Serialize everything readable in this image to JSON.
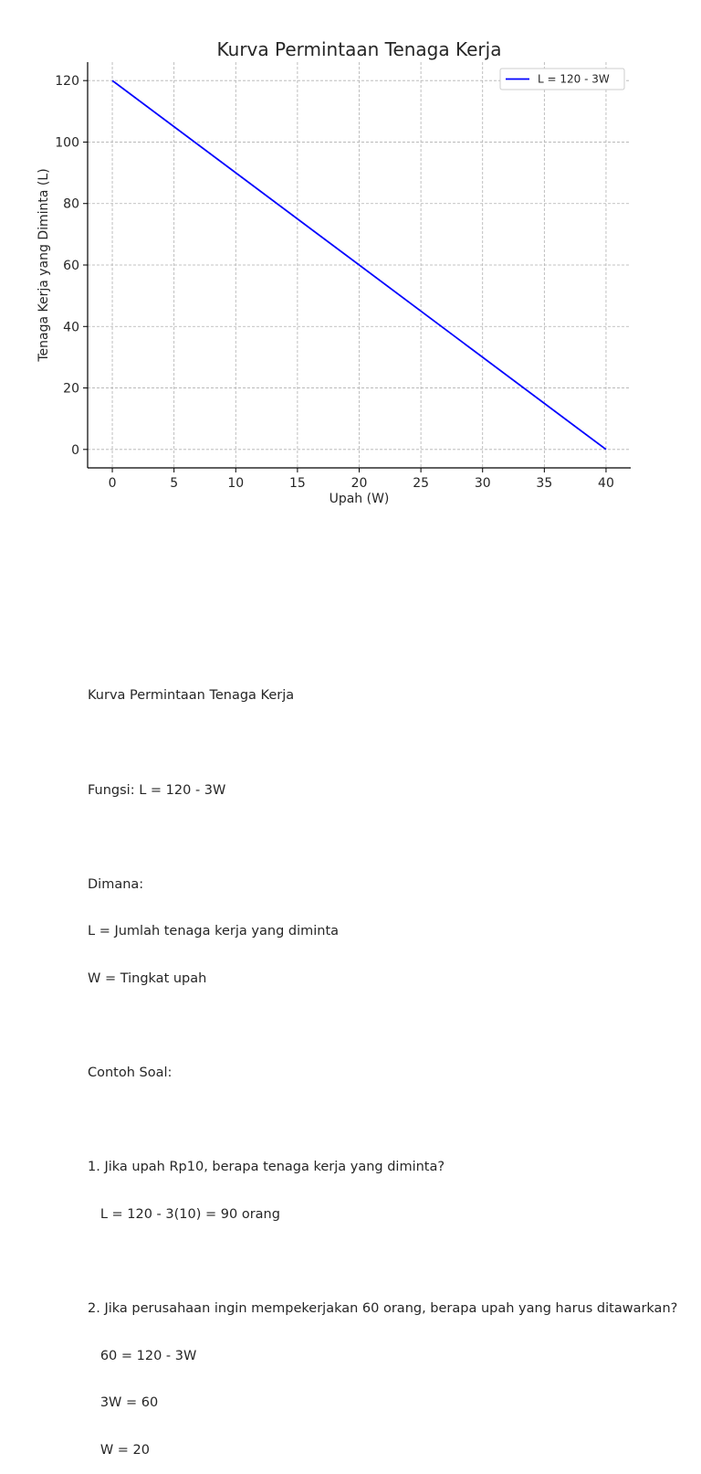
{
  "chart_data": {
    "type": "line",
    "title": "Kurva Permintaan Tenaga Kerja",
    "xlabel": "Upah (W)",
    "ylabel": "Tenaga Kerja yang Diminta (L)",
    "xlim": [
      -2,
      42
    ],
    "ylim": [
      -6,
      126
    ],
    "x_ticks": [
      0,
      5,
      10,
      15,
      20,
      25,
      30,
      35,
      40
    ],
    "y_ticks": [
      0,
      20,
      40,
      60,
      80,
      100,
      120
    ],
    "grid": true,
    "legend_position": "top-right",
    "series": [
      {
        "name": "L = 120 - 3W",
        "color": "#0000ff",
        "x": [
          0,
          40
        ],
        "y": [
          120,
          0
        ]
      }
    ]
  },
  "notes": {
    "heading": "Kurva Permintaan Tenaga Kerja",
    "function": "Fungsi: L = 120 - 3W",
    "where_label": "Dimana:",
    "where_l": "L = Jumlah tenaga kerja yang diminta",
    "where_w": "W = Tingkat upah",
    "examples_label": "Contoh Soal:",
    "q1": "1. Jika upah Rp10, berapa tenaga kerja yang diminta?",
    "q1_a1": "   L = 120 - 3(10) = 90 orang",
    "q2": "2. Jika perusahaan ingin mempekerjakan 60 orang, berapa upah yang harus ditawarkan?",
    "q2_a1": "   60 = 120 - 3W",
    "q2_a2": "   3W = 60",
    "q2_a3": "   W = 20"
  }
}
